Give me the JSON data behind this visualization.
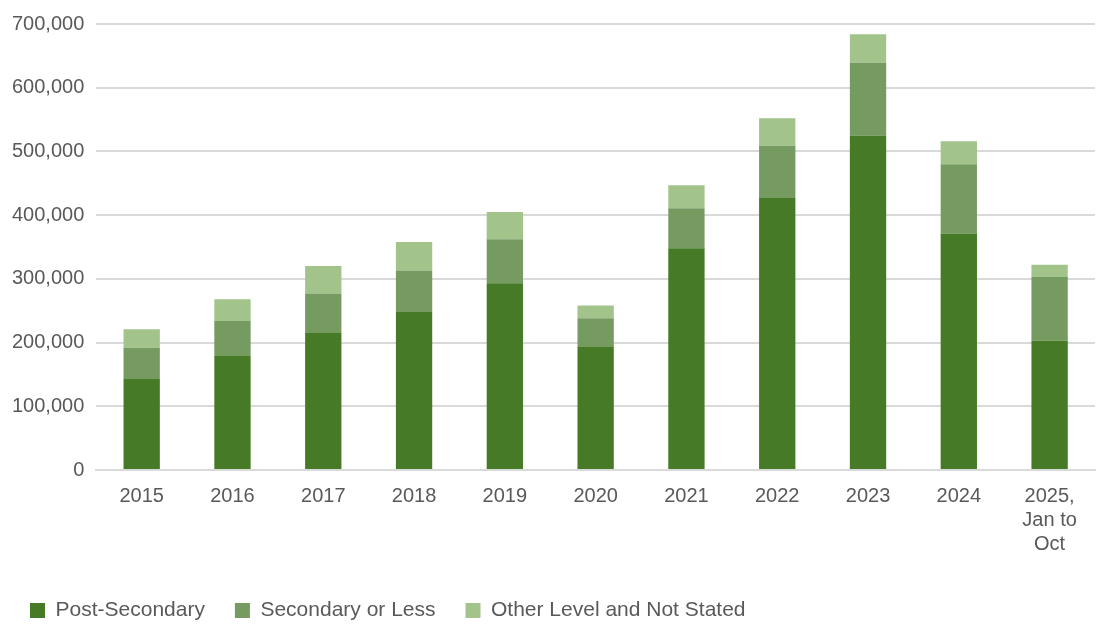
{
  "chart_data": {
    "type": "bar",
    "stacked": true,
    "categories": [
      "2015",
      "2016",
      "2017",
      "2018",
      "2019",
      "2020",
      "2021",
      "2022",
      "2023",
      "2024",
      "2025, Jan to Oct"
    ],
    "series": [
      {
        "name": "Post-Secondary",
        "color": "#467a26",
        "values": [
          143000,
          179000,
          215000,
          248000,
          293000,
          193000,
          348000,
          427000,
          525000,
          371000,
          203000
        ]
      },
      {
        "name": "Secondary or Less",
        "color": "#769b60",
        "values": [
          49000,
          55000,
          62000,
          65000,
          69000,
          45000,
          63000,
          82000,
          114000,
          109000,
          100000
        ]
      },
      {
        "name": "Other Level and Not Stated",
        "color": "#a2c48b",
        "values": [
          29000,
          34000,
          43000,
          45000,
          43000,
          20000,
          36000,
          43000,
          45000,
          36000,
          19000
        ]
      }
    ],
    "ylim": [
      0,
      700000
    ],
    "yticks": [
      0,
      {
        "value": 100000,
        "label": "100,000"
      },
      {
        "value": 200000,
        "label": "200,000"
      },
      {
        "value": 300000,
        "label": "300,000"
      },
      {
        "value": 400000,
        "label": "400,000"
      },
      {
        "value": 500000,
        "label": "500,000"
      },
      {
        "value": 600000,
        "label": "600,000"
      },
      {
        "value": 700000,
        "label": "700,000"
      }
    ],
    "grid": "y",
    "legend": "bottom"
  }
}
